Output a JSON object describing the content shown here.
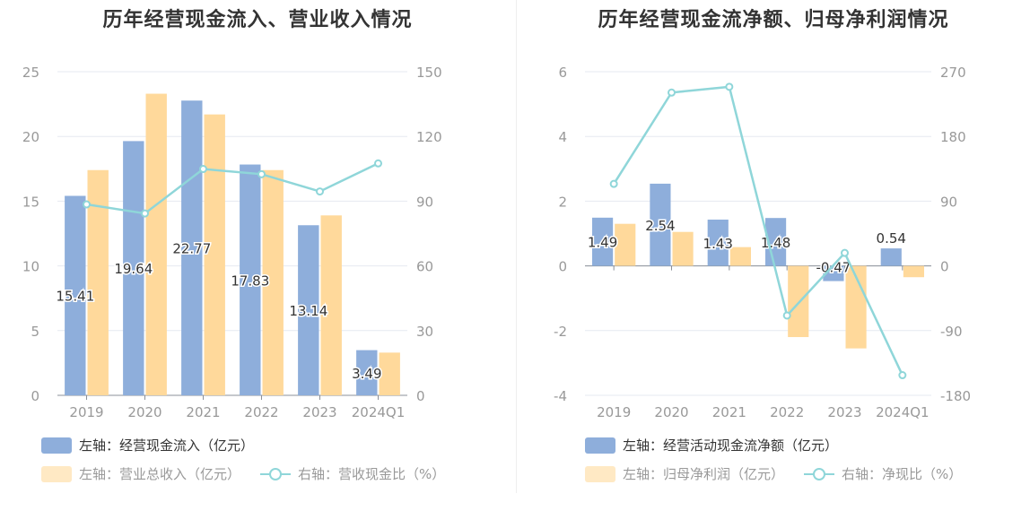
{
  "chart_data": [
    {
      "type": "bar",
      "title": "历年经营现金流入、营业收入情况",
      "categories": [
        "2019",
        "2020",
        "2021",
        "2022",
        "2023",
        "2024Q1"
      ],
      "y_left": {
        "min": 0,
        "max": 25,
        "ticks": [
          "0",
          "5",
          "10",
          "15",
          "20",
          "25"
        ]
      },
      "y_right": {
        "min": 0,
        "max": 150,
        "ticks": [
          "0",
          "30",
          "60",
          "90",
          "120",
          "150"
        ]
      },
      "series": [
        {
          "name": "左轴：经营现金流入（亿元）",
          "axis": "left",
          "kind": "bar",
          "color": "#8eaedb",
          "values": [
            15.41,
            19.64,
            22.77,
            17.83,
            13.14,
            3.49
          ],
          "labels": [
            "15.41",
            "19.64",
            "22.77",
            "17.83",
            "13.14",
            "3.49"
          ]
        },
        {
          "name": "左轴：营业总收入（亿元）",
          "axis": "left",
          "kind": "bar",
          "color": "#ffd99b",
          "values": [
            17.4,
            23.3,
            21.7,
            17.4,
            13.9,
            3.3
          ]
        },
        {
          "name": "右轴：营收现金比（%）",
          "axis": "right",
          "kind": "line",
          "color": "#8fd6d9",
          "values": [
            88.5,
            84.3,
            104.9,
            102.5,
            94.5,
            107.5
          ]
        }
      ],
      "grid": true,
      "legend_position": "bottom"
    },
    {
      "type": "bar",
      "title": "历年经营现金流净额、归母净利润情况",
      "categories": [
        "2019",
        "2020",
        "2021",
        "2022",
        "2023",
        "2024Q1"
      ],
      "y_left": {
        "min": -4,
        "max": 6,
        "ticks": [
          "-4",
          "-2",
          "0",
          "2",
          "4",
          "6"
        ]
      },
      "y_right": {
        "min": -180,
        "max": 270,
        "ticks": [
          "-180",
          "-90",
          "0",
          "90",
          "180",
          "270"
        ]
      },
      "series": [
        {
          "name": "左轴：经营活动现金流净额（亿元）",
          "axis": "left",
          "kind": "bar",
          "color": "#8eaedb",
          "values": [
            1.49,
            2.54,
            1.43,
            1.48,
            -0.47,
            0.54
          ],
          "labels": [
            "1.49",
            "2.54",
            "1.43",
            "1.48",
            "-0.47",
            "0.54"
          ]
        },
        {
          "name": "左轴：归母净利润（亿元）",
          "axis": "left",
          "kind": "bar",
          "color": "#ffd99b",
          "values": [
            1.3,
            1.05,
            0.58,
            -2.2,
            -2.55,
            -0.35
          ]
        },
        {
          "name": "右轴：净现比（%）",
          "axis": "right",
          "kind": "line",
          "color": "#8fd6d9",
          "values": [
            114,
            241,
            249,
            -69,
            18,
            -152
          ]
        }
      ],
      "grid": true,
      "legend_position": "bottom"
    }
  ]
}
